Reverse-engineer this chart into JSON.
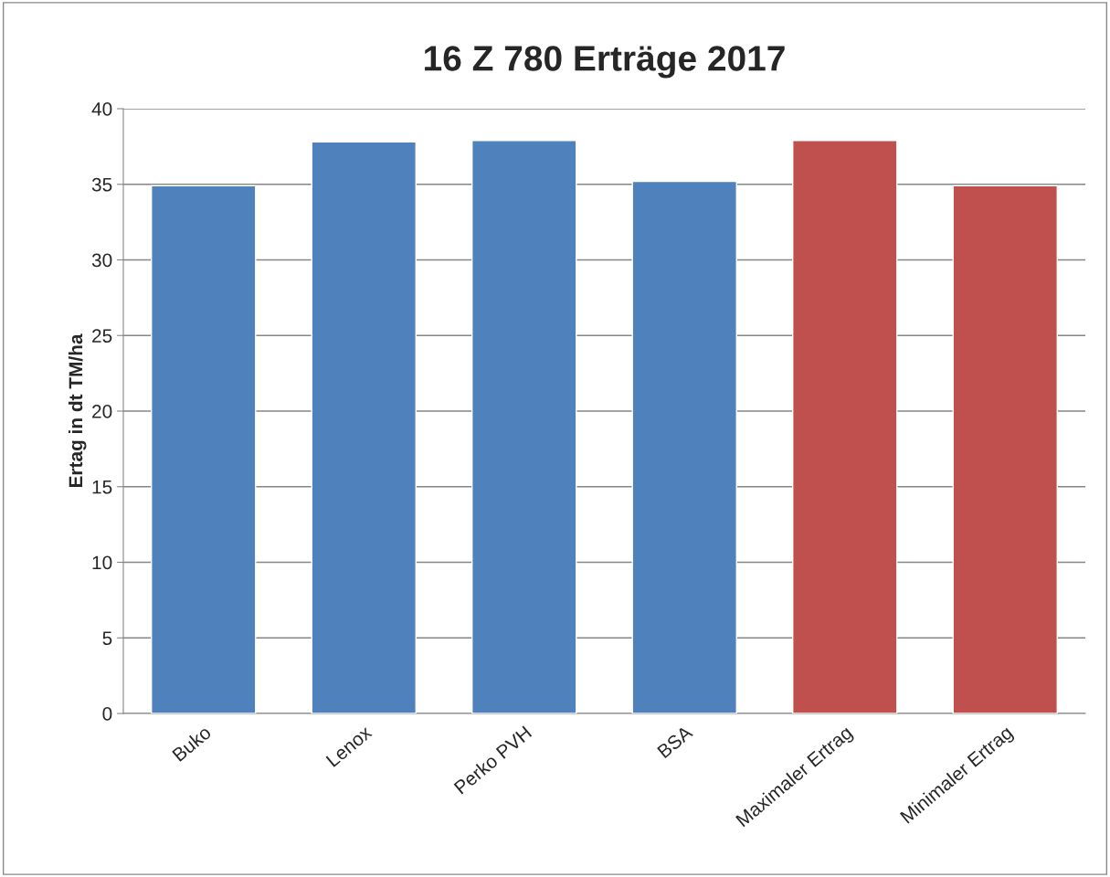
{
  "chart_data": {
    "type": "bar",
    "title": "16 Z 780 Erträge 2017",
    "ylabel": "Ertag in dt TM/ha",
    "categories": [
      "Buko",
      "Lenox",
      "Perko PVH",
      "BSA",
      "Maximaler Ertrag",
      "Minimaler Ertrag"
    ],
    "values": [
      34.9,
      37.8,
      37.9,
      35.2,
      37.9,
      34.9
    ],
    "colors": [
      "#4f81bd",
      "#4f81bd",
      "#4f81bd",
      "#4f81bd",
      "#c0504d",
      "#c0504d"
    ],
    "ylim": [
      0,
      40
    ],
    "yticks": [
      0,
      5,
      10,
      15,
      20,
      25,
      30,
      35,
      40
    ],
    "grid": "y"
  }
}
